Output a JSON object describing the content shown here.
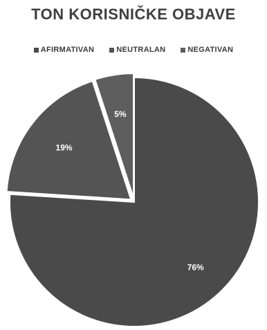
{
  "chart_data": {
    "type": "pie",
    "title": "TON KORISNIČKE OBJAVE",
    "legend_position": "top",
    "slices": [
      {
        "label": "AFIRMATIVAN",
        "value": 76,
        "value_label": "76%",
        "color": "#4a4a4a"
      },
      {
        "label": "NEUTRALAN",
        "value": 19,
        "value_label": "19%",
        "color": "#545454"
      },
      {
        "label": "NEGATIVAN",
        "value": 5,
        "value_label": "5%",
        "color": "#5e5e5e"
      }
    ]
  }
}
